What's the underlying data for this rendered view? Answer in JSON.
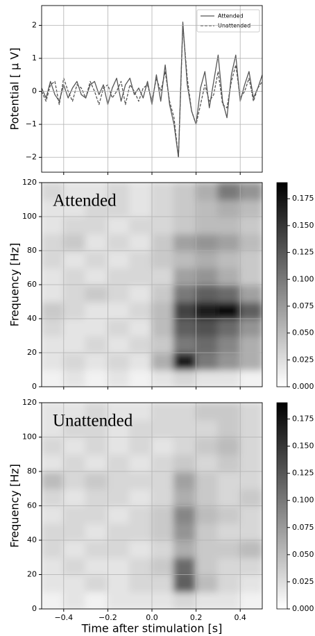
{
  "chart_data": [
    {
      "type": "line",
      "ylabel": "Potential [ μ V]",
      "legend": "upper right",
      "grid": true,
      "show_xtick_labels": false,
      "xlim": [
        -0.5,
        0.5
      ],
      "ylim": [
        -2.45,
        2.6
      ],
      "xticks": [
        {
          "value": -0.4,
          "label": "−0.4"
        },
        {
          "value": -0.2,
          "label": "−0.2"
        },
        {
          "value": 0,
          "label": "0.0"
        },
        0.2,
        0.4
      ],
      "yticks": [
        {
          "value": -2,
          "label": "−2"
        },
        {
          "value": -1,
          "label": "−1"
        },
        0,
        1,
        2
      ],
      "x": [
        -0.5,
        -0.48,
        -0.46,
        -0.44,
        -0.42,
        -0.4,
        -0.38,
        -0.36,
        -0.34,
        -0.32,
        -0.3,
        -0.28,
        -0.26,
        -0.24,
        -0.22,
        -0.2,
        -0.18,
        -0.16,
        -0.14,
        -0.12,
        -0.1,
        -0.08,
        -0.06,
        -0.04,
        -0.02,
        0,
        0.02,
        0.04,
        0.06,
        0.08,
        0.1,
        0.12,
        0.14,
        0.16,
        0.18,
        0.2,
        0.22,
        0.24,
        0.26,
        0.28,
        0.3,
        0.32,
        0.34,
        0.36,
        0.38,
        0.4,
        0.42,
        0.44,
        0.46,
        0.48,
        0.5
      ],
      "series": [
        {
          "name": "Attended",
          "color": "#555555",
          "style": "solid",
          "values": [
            0.1,
            -0.2,
            0.3,
            -0.1,
            -0.3,
            0.2,
            -0.2,
            0.1,
            0.3,
            -0.1,
            -0.2,
            0.2,
            0.3,
            -0.1,
            0.2,
            -0.4,
            0.1,
            0.4,
            -0.3,
            0.2,
            0.4,
            -0.1,
            0.1,
            -0.2,
            0.3,
            -0.4,
            0.5,
            -0.3,
            0.8,
            -0.4,
            -1.0,
            -2.0,
            2.1,
            0.2,
            -0.6,
            -1.0,
            0.1,
            0.6,
            -0.5,
            0.3,
            1.1,
            -0.3,
            -0.8,
            0.5,
            1.1,
            -0.3,
            0.2,
            0.6,
            -0.2,
            0.1,
            0.5
          ]
        },
        {
          "name": "Unattended",
          "color": "#555555",
          "style": "dashed",
          "values": [
            0.0,
            -0.3,
            0.2,
            0.3,
            -0.4,
            0.4,
            0.0,
            -0.3,
            0.2,
            0.1,
            -0.2,
            0.3,
            0.0,
            -0.4,
            0.1,
            0.2,
            -0.2,
            0.0,
            0.3,
            -0.4,
            0.2,
            0.0,
            -0.3,
            0.1,
            0.2,
            -0.3,
            0.4,
            0.0,
            0.6,
            -0.3,
            -0.8,
            -2.0,
            2.0,
            0.4,
            -0.6,
            -1.0,
            -0.4,
            0.2,
            -0.3,
            -0.1,
            0.6,
            -0.4,
            -0.5,
            0.3,
            0.8,
            -0.2,
            0.0,
            0.4,
            -0.3,
            0.1,
            0.3
          ]
        }
      ]
    },
    {
      "type": "heatmap",
      "annotation": "Attended",
      "ylabel": "Frequency [Hz]",
      "colormap": "Greys",
      "grid": true,
      "show_xtick_labels": false,
      "xlim": [
        -0.5,
        0.5
      ],
      "ylim": [
        0,
        120
      ],
      "clim": [
        0,
        0.19
      ],
      "xticks": [
        {
          "value": -0.4,
          "label": "−0.4"
        },
        {
          "value": -0.2,
          "label": "−0.2"
        },
        {
          "value": 0,
          "label": "0.0"
        },
        0.2,
        0.4
      ],
      "yticks": [
        0,
        20,
        40,
        60,
        80,
        100,
        120
      ],
      "cticks": [
        {
          "value": 0,
          "label": "0.000"
        },
        {
          "value": 0.025,
          "label": "0.025"
        },
        {
          "value": 0.05,
          "label": "0.050"
        },
        {
          "value": 0.075,
          "label": "0.075"
        },
        {
          "value": 0.1,
          "label": "0.100"
        },
        {
          "value": 0.125,
          "label": "0.125"
        },
        {
          "value": 0.15,
          "label": "0.150"
        },
        {
          "value": 0.175,
          "label": "0.175"
        }
      ],
      "x_edges": [
        -0.5,
        -0.4,
        -0.3,
        -0.2,
        -0.1,
        0,
        0.1,
        0.2,
        0.3,
        0.4,
        0.5
      ],
      "y_edges": [
        0,
        10,
        20,
        30,
        40,
        50,
        60,
        70,
        80,
        90,
        100,
        110,
        120
      ],
      "z": [
        [
          0.01,
          0.02,
          0.01,
          0.02,
          0.01,
          0.02,
          0.03,
          0.02,
          0.02,
          0.01
        ],
        [
          0.02,
          0.03,
          0.02,
          0.03,
          0.02,
          0.06,
          0.17,
          0.1,
          0.08,
          0.06
        ],
        [
          0.02,
          0.02,
          0.03,
          0.02,
          0.03,
          0.04,
          0.1,
          0.11,
          0.09,
          0.06
        ],
        [
          0.03,
          0.02,
          0.02,
          0.03,
          0.02,
          0.05,
          0.12,
          0.13,
          0.11,
          0.08
        ],
        [
          0.04,
          0.03,
          0.02,
          0.02,
          0.03,
          0.05,
          0.14,
          0.17,
          0.18,
          0.12
        ],
        [
          0.02,
          0.03,
          0.04,
          0.03,
          0.02,
          0.04,
          0.1,
          0.12,
          0.11,
          0.07
        ],
        [
          0.02,
          0.03,
          0.02,
          0.03,
          0.03,
          0.03,
          0.07,
          0.08,
          0.06,
          0.04
        ],
        [
          0.03,
          0.02,
          0.03,
          0.02,
          0.03,
          0.04,
          0.05,
          0.06,
          0.05,
          0.04
        ],
        [
          0.03,
          0.04,
          0.02,
          0.03,
          0.02,
          0.04,
          0.07,
          0.08,
          0.07,
          0.05
        ],
        [
          0.02,
          0.03,
          0.03,
          0.02,
          0.03,
          0.03,
          0.04,
          0.05,
          0.05,
          0.04
        ],
        [
          0.02,
          0.02,
          0.03,
          0.03,
          0.02,
          0.03,
          0.04,
          0.05,
          0.06,
          0.05
        ],
        [
          0.03,
          0.02,
          0.02,
          0.03,
          0.02,
          0.03,
          0.04,
          0.06,
          0.1,
          0.08
        ]
      ]
    },
    {
      "type": "heatmap",
      "annotation": "Unattended",
      "ylabel": "Frequency [Hz]",
      "xlabel": "Time after stimulation [s]",
      "colormap": "Greys",
      "grid": true,
      "show_xtick_labels": true,
      "xlim": [
        -0.5,
        0.5
      ],
      "ylim": [
        0,
        120
      ],
      "clim": [
        0,
        0.19
      ],
      "xticks": [
        {
          "value": -0.4,
          "label": "−0.4"
        },
        {
          "value": -0.2,
          "label": "−0.2"
        },
        {
          "value": 0,
          "label": "0.0"
        },
        0.2,
        0.4
      ],
      "yticks": [
        0,
        20,
        40,
        60,
        80,
        100,
        120
      ],
      "cticks": [
        {
          "value": 0,
          "label": "0.000"
        },
        {
          "value": 0.025,
          "label": "0.025"
        },
        {
          "value": 0.05,
          "label": "0.050"
        },
        {
          "value": 0.075,
          "label": "0.075"
        },
        {
          "value": 0.1,
          "label": "0.100"
        },
        {
          "value": 0.125,
          "label": "0.125"
        },
        {
          "value": 0.15,
          "label": "0.150"
        },
        {
          "value": 0.175,
          "label": "0.175"
        }
      ],
      "x_edges": [
        -0.5,
        -0.4,
        -0.3,
        -0.2,
        -0.1,
        0,
        0.1,
        0.2,
        0.3,
        0.4,
        0.5
      ],
      "y_edges": [
        0,
        10,
        20,
        30,
        40,
        50,
        60,
        70,
        80,
        90,
        100,
        110,
        120
      ],
      "z": [
        [
          0.01,
          0.02,
          0.01,
          0.02,
          0.02,
          0.02,
          0.03,
          0.02,
          0.02,
          0.01
        ],
        [
          0.02,
          0.02,
          0.03,
          0.02,
          0.03,
          0.03,
          0.12,
          0.05,
          0.03,
          0.02
        ],
        [
          0.02,
          0.03,
          0.02,
          0.02,
          0.03,
          0.04,
          0.11,
          0.04,
          0.03,
          0.03
        ],
        [
          0.03,
          0.02,
          0.03,
          0.03,
          0.02,
          0.03,
          0.06,
          0.04,
          0.04,
          0.05
        ],
        [
          0.03,
          0.03,
          0.02,
          0.03,
          0.03,
          0.04,
          0.08,
          0.04,
          0.03,
          0.03
        ],
        [
          0.02,
          0.03,
          0.03,
          0.02,
          0.03,
          0.04,
          0.09,
          0.05,
          0.04,
          0.03
        ],
        [
          0.03,
          0.02,
          0.03,
          0.03,
          0.02,
          0.03,
          0.06,
          0.04,
          0.03,
          0.04
        ],
        [
          0.05,
          0.03,
          0.04,
          0.03,
          0.03,
          0.03,
          0.07,
          0.04,
          0.03,
          0.03
        ],
        [
          0.02,
          0.03,
          0.02,
          0.03,
          0.02,
          0.03,
          0.04,
          0.03,
          0.04,
          0.03
        ],
        [
          0.03,
          0.02,
          0.03,
          0.02,
          0.03,
          0.02,
          0.03,
          0.04,
          0.05,
          0.03
        ],
        [
          0.02,
          0.03,
          0.03,
          0.02,
          0.03,
          0.03,
          0.03,
          0.03,
          0.04,
          0.03
        ],
        [
          0.02,
          0.02,
          0.03,
          0.02,
          0.02,
          0.03,
          0.03,
          0.04,
          0.04,
          0.03
        ]
      ]
    }
  ]
}
